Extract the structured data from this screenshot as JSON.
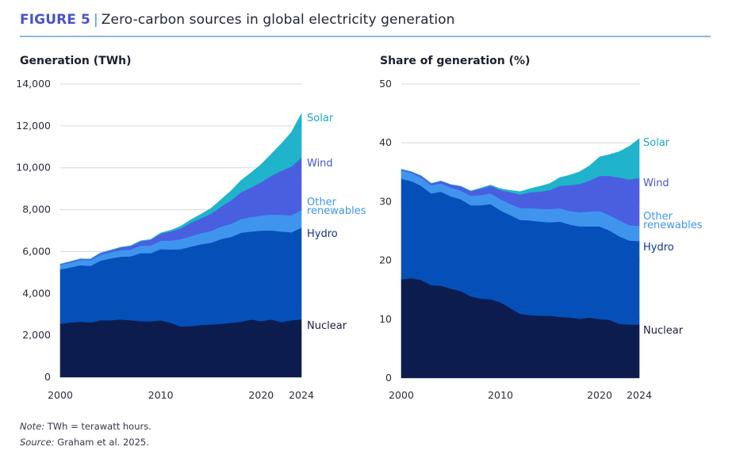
{
  "figure": {
    "number": "FIGURE 5",
    "separator": "|",
    "title": "Zero-carbon sources in global electricity generation"
  },
  "notes": {
    "note_label": "Note:",
    "note_text": " TWh = terawatt hours.",
    "source_label": "Source:",
    "source_text": " Graham et al. 2025."
  },
  "colors": {
    "Nuclear": "#0d1c4f",
    "Hydro": "#0550b8",
    "Other renewables": "#3f95ee",
    "Wind": "#4a5fe0",
    "Solar": "#1fb4cb",
    "label_Nuclear": "#1b1f3a",
    "label_Hydro": "#12347f",
    "label_Other renewables": "#3f95ee",
    "label_Wind": "#4a55c9",
    "label_Solar": "#1aa9bc",
    "grid": "#d6d8de"
  },
  "chart_data": [
    {
      "type": "area",
      "stacked": true,
      "title": "Generation (TWh)",
      "xlabel": "",
      "ylabel": "Generation (TWh)",
      "x": [
        2000,
        2001,
        2002,
        2003,
        2004,
        2005,
        2006,
        2007,
        2008,
        2009,
        2010,
        2011,
        2012,
        2013,
        2014,
        2015,
        2016,
        2017,
        2018,
        2019,
        2020,
        2021,
        2022,
        2023,
        2024
      ],
      "xticks": [
        "2000",
        "2010",
        "2020",
        "2024"
      ],
      "xtick_values": [
        2000,
        2010,
        2020,
        2024
      ],
      "ylim": [
        0,
        14000
      ],
      "yticks": [
        "0",
        "2,000",
        "4,000",
        "6,000",
        "8,000",
        "10,000",
        "12,000",
        "14,000"
      ],
      "ytick_values": [
        0,
        2000,
        4000,
        6000,
        8000,
        10000,
        12000,
        14000
      ],
      "grid": true,
      "legend": "right-inline",
      "series": [
        {
          "name": "Nuclear",
          "label": "Nuclear",
          "values": [
            2550,
            2620,
            2650,
            2620,
            2720,
            2720,
            2760,
            2720,
            2680,
            2670,
            2720,
            2600,
            2420,
            2440,
            2500,
            2520,
            2550,
            2600,
            2650,
            2760,
            2680,
            2760,
            2630,
            2720,
            2760
          ]
        },
        {
          "name": "Hydro",
          "label": "Hydro",
          "values": [
            2600,
            2620,
            2700,
            2700,
            2850,
            2950,
            3000,
            3050,
            3250,
            3250,
            3400,
            3500,
            3700,
            3800,
            3850,
            3900,
            4050,
            4100,
            4250,
            4200,
            4320,
            4250,
            4330,
            4200,
            4380
          ]
        },
        {
          "name": "Other renewables",
          "label": "Other\nrenewables",
          "values": [
            220,
            240,
            250,
            260,
            280,
            290,
            310,
            330,
            350,
            370,
            400,
            430,
            470,
            500,
            530,
            560,
            590,
            620,
            660,
            690,
            720,
            760,
            800,
            810,
            840
          ]
        },
        {
          "name": "Wind",
          "label": "Wind",
          "values": [
            30,
            40,
            50,
            60,
            80,
            100,
            130,
            170,
            220,
            270,
            340,
            430,
            520,
            640,
            710,
            830,
            960,
            1130,
            1270,
            1420,
            1590,
            1850,
            2100,
            2330,
            2500
          ]
        },
        {
          "name": "Solar",
          "label": "Solar",
          "values": [
            1,
            2,
            2,
            3,
            3,
            4,
            5,
            7,
            12,
            20,
            30,
            60,
            100,
            140,
            190,
            250,
            330,
            450,
            570,
            700,
            850,
            1030,
            1290,
            1630,
            2100
          ]
        }
      ]
    },
    {
      "type": "area",
      "stacked": true,
      "title": "Share of generation (%)",
      "xlabel": "",
      "ylabel": "Share of generation (%)",
      "x": [
        2000,
        2001,
        2002,
        2003,
        2004,
        2005,
        2006,
        2007,
        2008,
        2009,
        2010,
        2011,
        2012,
        2013,
        2014,
        2015,
        2016,
        2017,
        2018,
        2019,
        2020,
        2021,
        2022,
        2023,
        2024
      ],
      "xticks": [
        "2000",
        "2010",
        "2020",
        "2024"
      ],
      "xtick_values": [
        2000,
        2010,
        2020,
        2024
      ],
      "ylim": [
        0,
        50
      ],
      "yticks": [
        "0",
        "10",
        "20",
        "30",
        "40",
        "50"
      ],
      "ytick_values": [
        0,
        10,
        20,
        30,
        40,
        50
      ],
      "grid": true,
      "legend": "right-inline",
      "series": [
        {
          "name": "Nuclear",
          "label": "Nuclear",
          "values": [
            16.8,
            17.0,
            16.7,
            15.8,
            15.7,
            15.2,
            14.8,
            13.9,
            13.5,
            13.4,
            12.9,
            11.9,
            10.9,
            10.7,
            10.6,
            10.6,
            10.4,
            10.3,
            10.1,
            10.3,
            10.0,
            9.9,
            9.2,
            9.1,
            9.1
          ]
        },
        {
          "name": "Hydro",
          "label": "Hydro",
          "values": [
            17.1,
            16.5,
            16.0,
            15.6,
            16.0,
            15.7,
            15.6,
            15.5,
            15.9,
            16.2,
            15.6,
            15.8,
            16.0,
            16.1,
            16.0,
            15.9,
            16.2,
            15.8,
            15.7,
            15.5,
            15.8,
            15.2,
            14.9,
            14.3,
            14.2
          ]
        },
        {
          "name": "Other renewables",
          "label": "Other\nrenewables",
          "values": [
            1.4,
            1.4,
            1.4,
            1.4,
            1.4,
            1.5,
            1.5,
            1.6,
            1.7,
            1.8,
            1.9,
            1.9,
            2.0,
            2.1,
            2.2,
            2.2,
            2.3,
            2.3,
            2.4,
            2.5,
            2.6,
            2.6,
            2.7,
            2.6,
            2.6
          ]
        },
        {
          "name": "Wind",
          "label": "Wind",
          "values": [
            0.2,
            0.2,
            0.3,
            0.3,
            0.4,
            0.5,
            0.7,
            0.8,
            1.1,
            1.3,
            1.6,
            2.0,
            2.3,
            2.7,
            2.9,
            3.3,
            3.8,
            4.4,
            4.8,
            5.3,
            6.0,
            6.7,
            7.3,
            7.8,
            8.1
          ]
        },
        {
          "name": "Solar",
          "label": "Solar",
          "values": [
            0.0,
            0.0,
            0.0,
            0.0,
            0.0,
            0.0,
            0.0,
            0.0,
            0.1,
            0.1,
            0.2,
            0.3,
            0.5,
            0.6,
            0.9,
            1.1,
            1.4,
            1.7,
            2.1,
            2.5,
            3.2,
            3.6,
            4.4,
            5.6,
            6.7
          ]
        }
      ]
    }
  ]
}
